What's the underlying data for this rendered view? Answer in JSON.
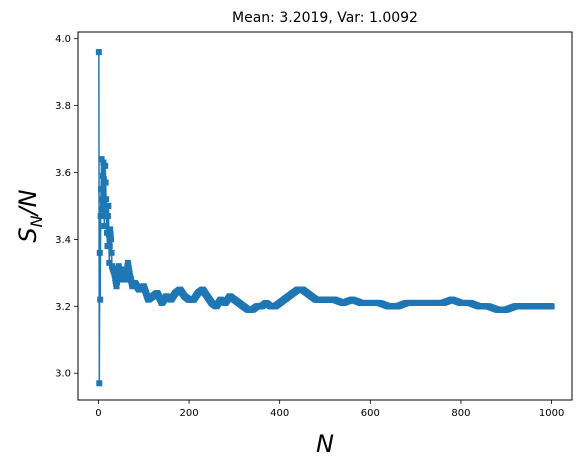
{
  "chart_data": {
    "type": "line",
    "title": "Mean: 3.2019, Var: 1.0092",
    "xlabel": "N",
    "ylabel": "S_N/N",
    "xlim": [
      -45,
      1045
    ],
    "ylim": [
      2.92,
      4.02
    ],
    "xticks": [
      0,
      200,
      400,
      600,
      800,
      1000
    ],
    "yticks": [
      3.0,
      3.2,
      3.4,
      3.6,
      3.8,
      4.0
    ],
    "xtick_labels": [
      "0",
      "200",
      "400",
      "600",
      "800",
      "1000"
    ],
    "ytick_labels": [
      "3.0",
      "3.2",
      "3.4",
      "3.6",
      "3.8",
      "4.0"
    ],
    "grid": false,
    "legend": false,
    "color": "#1f77b4",
    "marker": "square",
    "series": [
      {
        "x": [
          1,
          2,
          3,
          4,
          5,
          6,
          7,
          8,
          9,
          10,
          11,
          12,
          13,
          14,
          15,
          16,
          17,
          18,
          19,
          20,
          21,
          22,
          24,
          26,
          28,
          30,
          35,
          40,
          45,
          50,
          55,
          60,
          65,
          70,
          75,
          80,
          90,
          100,
          110,
          120,
          130,
          140,
          150,
          160,
          170,
          180,
          190,
          200,
          210,
          220,
          230,
          240,
          250,
          260,
          270,
          280,
          290,
          300,
          310,
          320,
          330,
          340,
          350,
          360,
          370,
          380,
          390,
          400,
          410,
          420,
          430,
          440,
          450,
          460,
          470,
          480,
          490,
          500,
          520,
          540,
          560,
          580,
          600,
          620,
          640,
          660,
          680,
          700,
          720,
          740,
          760,
          780,
          800,
          820,
          840,
          860,
          880,
          900,
          920,
          940,
          960,
          980,
          1000
        ],
        "y": [
          3.96,
          2.97,
          3.36,
          3.22,
          3.47,
          3.55,
          3.64,
          3.52,
          3.49,
          3.59,
          3.63,
          3.58,
          3.44,
          3.48,
          3.62,
          3.57,
          3.52,
          3.47,
          3.42,
          3.38,
          3.47,
          3.5,
          3.33,
          3.43,
          3.4,
          3.32,
          3.3,
          3.26,
          3.32,
          3.28,
          3.31,
          3.28,
          3.33,
          3.29,
          3.26,
          3.27,
          3.25,
          3.26,
          3.22,
          3.23,
          3.24,
          3.21,
          3.23,
          3.22,
          3.24,
          3.25,
          3.23,
          3.22,
          3.22,
          3.24,
          3.25,
          3.23,
          3.21,
          3.2,
          3.22,
          3.21,
          3.23,
          3.22,
          3.21,
          3.2,
          3.19,
          3.19,
          3.2,
          3.2,
          3.21,
          3.2,
          3.2,
          3.21,
          3.22,
          3.23,
          3.24,
          3.25,
          3.25,
          3.24,
          3.23,
          3.22,
          3.22,
          3.22,
          3.22,
          3.21,
          3.22,
          3.21,
          3.21,
          3.21,
          3.2,
          3.2,
          3.21,
          3.21,
          3.21,
          3.21,
          3.21,
          3.22,
          3.21,
          3.21,
          3.2,
          3.2,
          3.19,
          3.19,
          3.2,
          3.2,
          3.2,
          3.2,
          3.2
        ]
      }
    ]
  }
}
